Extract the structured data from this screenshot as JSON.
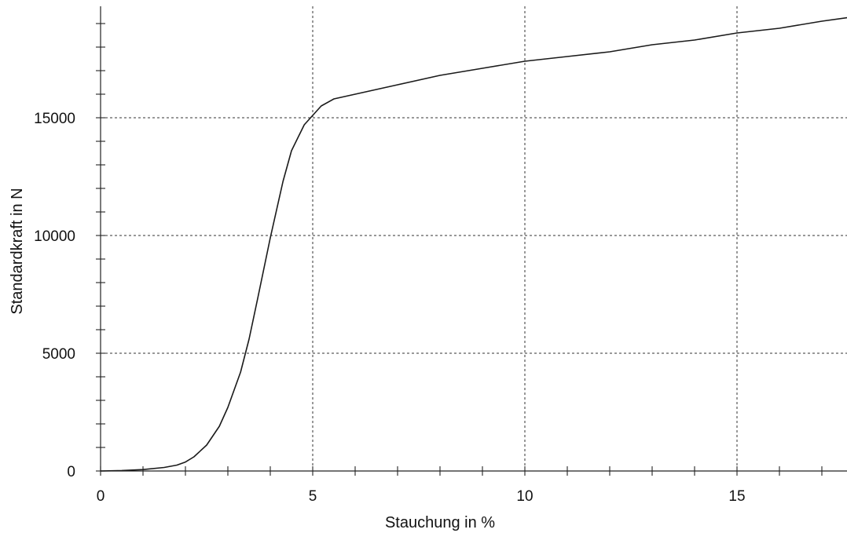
{
  "chart_data": {
    "type": "line",
    "title": "",
    "xlabel": "Stauchung in %",
    "ylabel": "Standardkraft in N",
    "xlim": [
      0,
      17.8
    ],
    "ylim": [
      0,
      19500
    ],
    "grid": true,
    "legend": "none",
    "x_ticks": [
      {
        "value": 0,
        "label": "0"
      },
      {
        "value": 5,
        "label": "5"
      },
      {
        "value": 10,
        "label": "10"
      },
      {
        "value": 15,
        "label": "15"
      }
    ],
    "y_ticks": [
      {
        "value": 0,
        "label": "0"
      },
      {
        "value": 5000,
        "label": "5000"
      },
      {
        "value": 10000,
        "label": "10000"
      },
      {
        "value": 15000,
        "label": "15000"
      }
    ],
    "x_minor_step": 1,
    "y_minor_step": 1000,
    "series": [
      {
        "color": "#1a1a1a",
        "x": [
          0,
          0.5,
          1.0,
          1.5,
          1.8,
          2.0,
          2.2,
          2.5,
          2.8,
          3.0,
          3.3,
          3.5,
          3.7,
          4.0,
          4.3,
          4.5,
          4.8,
          5.0,
          5.2,
          5.5,
          6.0,
          7.0,
          8.0,
          9.0,
          10.0,
          11.0,
          12.0,
          13.0,
          14.0,
          15.0,
          16.0,
          17.0,
          17.8
        ],
        "y": [
          0,
          20,
          60,
          150,
          250,
          380,
          600,
          1100,
          1900,
          2700,
          4200,
          5600,
          7300,
          9900,
          12300,
          13600,
          14700,
          15100,
          15500,
          15800,
          16000,
          16400,
          16800,
          17100,
          17400,
          17600,
          17800,
          18100,
          18300,
          18600,
          18800,
          19100,
          19300
        ]
      }
    ]
  }
}
